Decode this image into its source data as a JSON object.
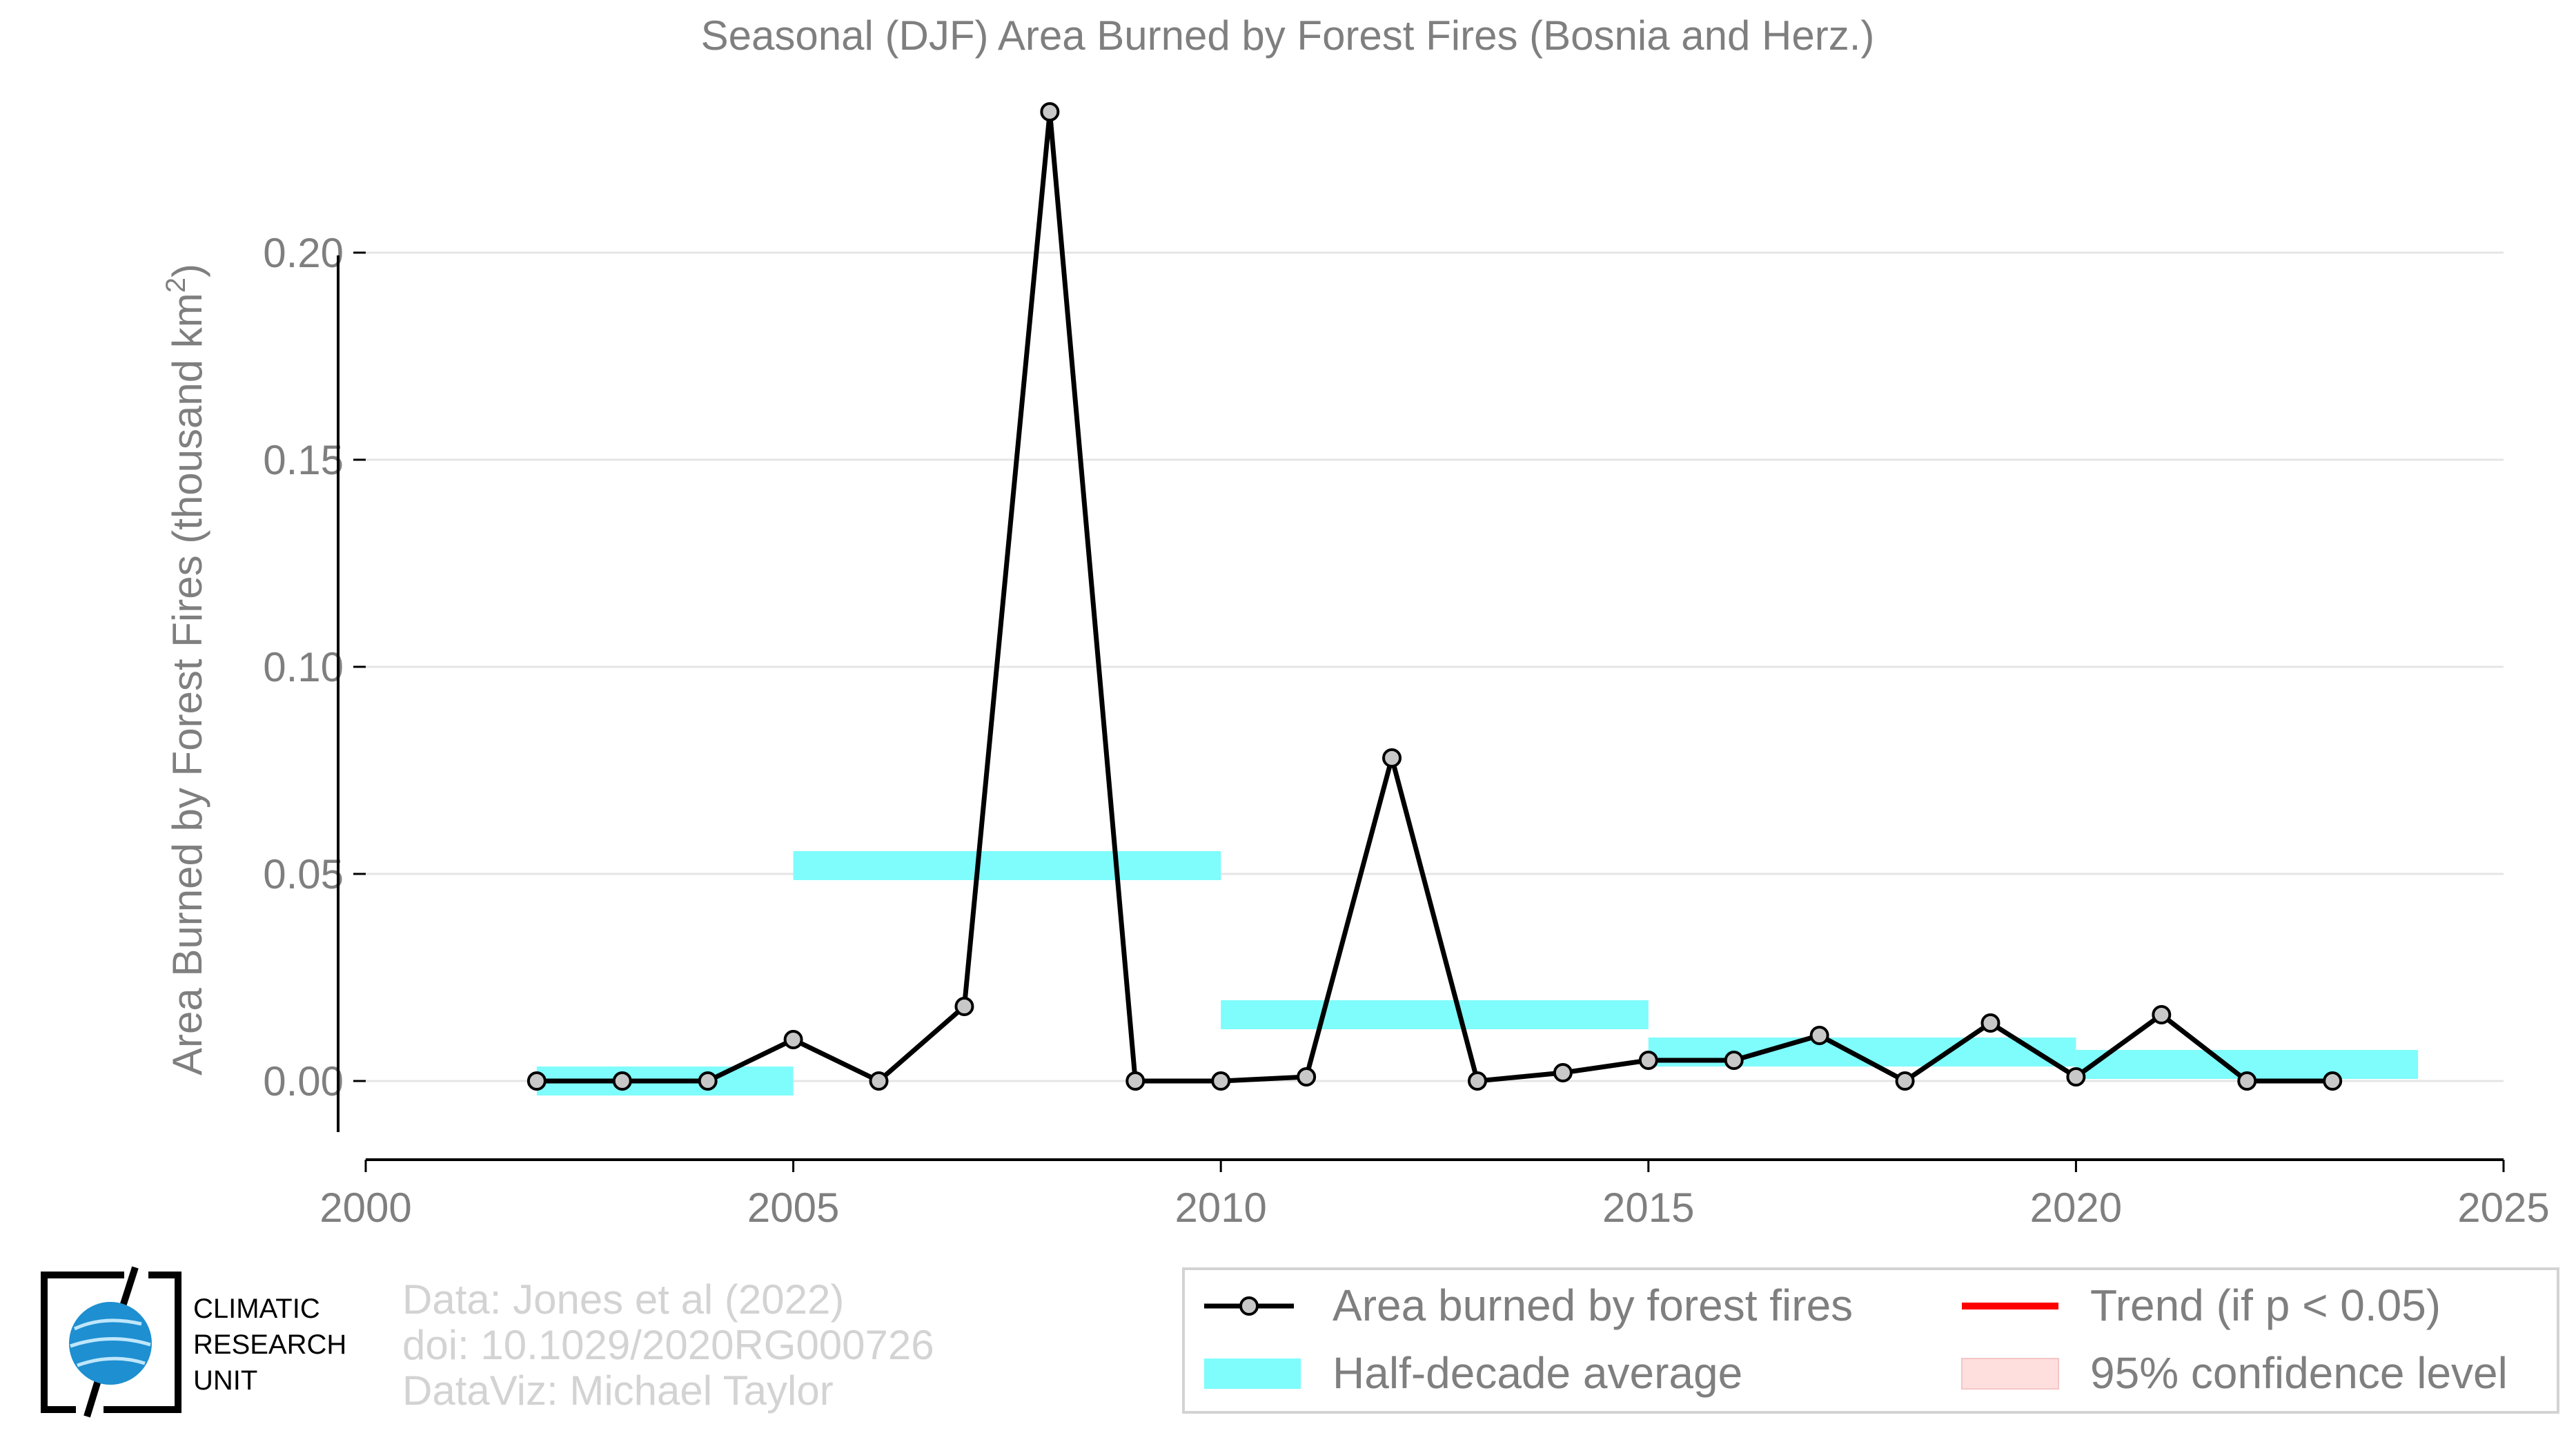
{
  "chart_data": {
    "type": "line",
    "title": "Seasonal (DJF) Area Burned by Forest Fires (Bosnia and Herz.)",
    "ylabel": "Area Burned by Forest Fires (thousand km",
    "ylabel_superscript": "2",
    "ylabel_close": ")",
    "xlim": [
      2000,
      2025
    ],
    "ylim": [
      -0.019,
      0.236
    ],
    "grid": true,
    "x_ticks": [
      2000,
      2005,
      2010,
      2015,
      2020,
      2025
    ],
    "y_ticks": [
      0.0,
      0.05,
      0.1,
      0.15,
      0.2
    ],
    "y_tick_labels": [
      "0.00",
      "0.05",
      "0.10",
      "0.15",
      "0.20"
    ],
    "series": [
      {
        "name": "Area burned by forest fires",
        "color": "#000000",
        "x": [
          2002,
          2003,
          2004,
          2005,
          2006,
          2007,
          2008,
          2009,
          2010,
          2011,
          2012,
          2013,
          2014,
          2015,
          2016,
          2017,
          2018,
          2019,
          2020,
          2021,
          2022,
          2023
        ],
        "y": [
          0.0,
          0.0,
          0.0,
          0.01,
          0.0,
          0.018,
          0.234,
          0.0,
          0.0,
          0.001,
          0.078,
          0.0,
          0.002,
          0.005,
          0.005,
          0.011,
          0.0,
          0.014,
          0.001,
          0.016,
          0.0,
          0.0
        ]
      }
    ],
    "half_decade_averages": {
      "name": "Half-decade average",
      "color": "#7ffcfc",
      "bars": [
        {
          "x0": 2002,
          "x1": 2005,
          "y": 0.0
        },
        {
          "x0": 2005,
          "x1": 2010,
          "y": 0.052
        },
        {
          "x0": 2010,
          "x1": 2015,
          "y": 0.016
        },
        {
          "x0": 2015,
          "x1": 2020,
          "y": 0.007
        },
        {
          "x0": 2020,
          "x1": 2024,
          "y": 0.004
        }
      ]
    },
    "legend": {
      "placement": "bottom-right",
      "items": [
        {
          "label": "Area burned by forest fires",
          "kind": "line-marker",
          "color": "#000000"
        },
        {
          "label": "Trend (if p < 0.05)",
          "kind": "line",
          "color": "#ff0000"
        },
        {
          "label": "Half-decade average",
          "kind": "band",
          "color": "#7ffcfc"
        },
        {
          "label": "95% confidence level",
          "kind": "band",
          "color": "#ffdede"
        }
      ]
    }
  },
  "footer": {
    "line1": "Data: Jones et al (2022)",
    "line2": "doi: 10.1029/2020RG000726",
    "line3": "DataViz: Michael Taylor"
  },
  "logo": {
    "line1": "CLIMATIC",
    "line2": "RESEARCH",
    "line3": "UNIT"
  },
  "colors": {
    "text_gray": "#7f7f7f",
    "grid": "#e5e5e5",
    "footer_gray": "#d3d3d3",
    "marker_fill": "#c8c8c8",
    "logo_blue": "#1e8fd0"
  }
}
